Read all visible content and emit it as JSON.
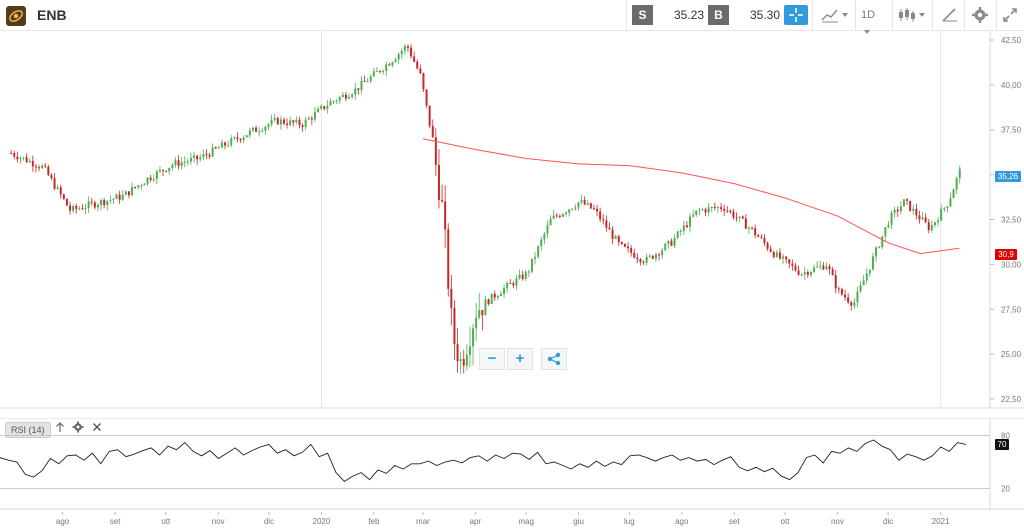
{
  "header": {
    "symbol": "ENB",
    "sell_label": "S",
    "sell_price": "35.23",
    "buy_label": "B",
    "buy_price": "35.30",
    "timeframe": "1D",
    "icons": [
      "crosshair-icon",
      "line-chart-icon",
      "candlestick-icon",
      "draw-icon",
      "gear-icon",
      "fullscreen-icon"
    ]
  },
  "tags": {
    "last_price": "35,26",
    "ma_value": "30,9",
    "rsi_value": "70"
  },
  "indicator": {
    "label": "RSI (14)"
  },
  "colors": {
    "up": "#4caf50",
    "down": "#c62828",
    "ma": "#ff5252",
    "accent": "#3399dd"
  },
  "chart_data": [
    {
      "type": "candlestick",
      "title": "",
      "y_ticks": [
        "42,50",
        "40,00",
        "37,50",
        "35,00",
        "32,50",
        "30,00",
        "27,50",
        "25,00",
        "22,50"
      ],
      "x_ticks": [
        "ago",
        "set",
        "ott",
        "nov",
        "dic",
        "2020",
        "feb",
        "mar",
        "apr",
        "mag",
        "giu",
        "lug",
        "ago",
        "set",
        "ott",
        "nov",
        "dic",
        "2021"
      ],
      "ylim": [
        22.0,
        43.0
      ],
      "x": [
        "2019-07-01",
        "2019-07-20",
        "2019-08-05",
        "2019-08-20",
        "2019-09-05",
        "2019-09-20",
        "2019-10-05",
        "2019-10-20",
        "2019-11-05",
        "2019-11-20",
        "2019-12-05",
        "2019-12-20",
        "2020-01-05",
        "2020-01-20",
        "2020-02-01",
        "2020-02-10",
        "2020-02-20",
        "2020-02-28",
        "2020-03-05",
        "2020-03-12",
        "2020-03-18",
        "2020-03-23",
        "2020-04-01",
        "2020-04-15",
        "2020-05-01",
        "2020-05-15",
        "2020-06-01",
        "2020-06-10",
        "2020-06-25",
        "2020-07-10",
        "2020-07-25",
        "2020-08-10",
        "2020-08-25",
        "2020-09-10",
        "2020-09-25",
        "2020-10-10",
        "2020-10-25",
        "2020-11-01",
        "2020-11-10",
        "2020-11-20",
        "2020-12-01",
        "2020-12-10",
        "2020-12-25",
        "2021-01-05",
        "2021-01-12"
      ],
      "close": [
        36.2,
        35.4,
        33.0,
        33.4,
        33.8,
        34.8,
        35.6,
        35.9,
        36.7,
        37.4,
        38.0,
        37.8,
        39.0,
        39.7,
        40.6,
        41.3,
        42.2,
        40.5,
        37.5,
        33.0,
        26.0,
        24.5,
        27.5,
        28.5,
        29.5,
        32.5,
        33.5,
        33.0,
        31.0,
        30.2,
        31.2,
        33.0,
        33.2,
        32.0,
        30.5,
        29.5,
        30.0,
        28.5,
        27.8,
        30.0,
        32.5,
        33.5,
        32.0,
        33.5,
        35.26
      ],
      "ma_x": [
        "2020-03-01",
        "2020-04-01",
        "2020-05-01",
        "2020-06-01",
        "2020-07-01",
        "2020-08-01",
        "2020-09-01",
        "2020-10-01",
        "2020-11-01",
        "2020-12-01",
        "2020-12-20",
        "2021-01-12"
      ],
      "ma": [
        37.0,
        36.4,
        35.9,
        35.6,
        35.5,
        35.1,
        34.5,
        33.7,
        32.7,
        31.2,
        30.6,
        30.9
      ],
      "series": [
        {
          "name": "ENB"
        }
      ]
    },
    {
      "type": "line",
      "title": "",
      "y_ticks": [
        "80",
        "20"
      ],
      "ylim": [
        0,
        100
      ],
      "values": [
        55,
        52,
        50,
        36,
        33,
        40,
        54,
        48,
        57,
        58,
        52,
        60,
        48,
        62,
        64,
        56,
        59,
        63,
        66,
        58,
        68,
        64,
        72,
        62,
        57,
        63,
        54,
        60,
        66,
        58,
        63,
        67,
        70,
        60,
        64,
        57,
        61,
        70,
        56,
        60,
        38,
        28,
        34,
        38,
        30,
        41,
        37,
        46,
        42,
        48,
        48,
        51,
        46,
        50,
        52,
        49,
        55,
        57,
        51,
        58,
        54,
        60,
        59,
        53,
        61,
        48,
        50,
        46,
        42,
        48,
        44,
        51,
        45,
        50,
        47,
        57,
        58,
        55,
        51,
        55,
        58,
        52,
        55,
        51,
        53,
        47,
        52,
        56,
        44,
        40,
        44,
        39,
        43,
        34,
        30,
        38,
        55,
        58,
        49,
        62,
        60,
        66,
        62,
        71,
        75,
        68,
        64,
        52,
        59,
        56,
        52,
        57,
        67,
        62,
        72,
        70
      ],
      "series": [
        {
          "name": "RSI (14)"
        }
      ]
    }
  ]
}
